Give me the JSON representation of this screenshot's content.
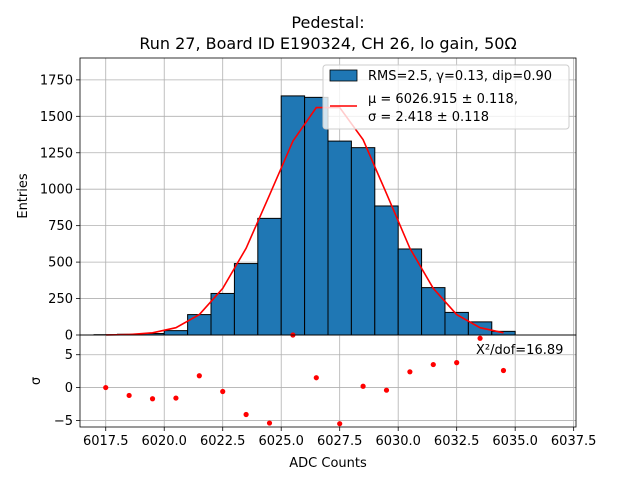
{
  "chart_data": [
    {
      "panel": "main",
      "type": "bar",
      "title": "Pedestal:\nRun 27, Board ID E190324, CH 26, lo gain, 50Ω",
      "ylabel": "Entries",
      "xlabel": "",
      "xlim": [
        6016.4,
        6037.6
      ],
      "ylim": [
        0,
        1900
      ],
      "yticks": [
        0,
        250,
        500,
        750,
        1000,
        1250,
        1500,
        1750
      ],
      "grid": true,
      "legend_position": "top-right",
      "series": [
        {
          "name": "RMS=2.5, γ=0.13, dip=0.90",
          "kind": "histogram",
          "color": "#1f77b4",
          "bin_width": 1,
          "bin_centers": [
            6017.5,
            6018.5,
            6019.5,
            6020.5,
            6021.5,
            6022.5,
            6023.5,
            6024.5,
            6025.5,
            6026.5,
            6027.5,
            6028.5,
            6029.5,
            6030.5,
            6031.5,
            6032.5,
            6033.5,
            6034.5
          ],
          "values": [
            2,
            5,
            10,
            30,
            140,
            285,
            490,
            800,
            1640,
            1630,
            1330,
            1285,
            885,
            590,
            325,
            155,
            90,
            25
          ]
        },
        {
          "name_lines": [
            "μ = 6026.915 ± 0.118,",
            "σ = 2.418 ± 0.118"
          ],
          "kind": "gaussian fit",
          "color": "#ff0000",
          "x": [
            6017.5,
            6018.5,
            6019.5,
            6020.5,
            6021.5,
            6022.5,
            6023.5,
            6024.5,
            6025.5,
            6026.5,
            6027.5,
            6028.5,
            6029.5,
            6030.5,
            6031.5,
            6032.5,
            6033.5,
            6034.5
          ],
          "y": [
            0,
            3,
            15,
            50,
            140,
            320,
            595,
            960,
            1330,
            1560,
            1560,
            1340,
            970,
            595,
            320,
            140,
            50,
            15
          ]
        }
      ]
    },
    {
      "panel": "residuals",
      "type": "scatter",
      "ylabel": "σ",
      "xlabel": "ADC Counts",
      "xlim": [
        6016.4,
        6037.6
      ],
      "ylim": [
        -6,
        8
      ],
      "xticks": [
        6017.5,
        6020.0,
        6022.5,
        6025.0,
        6027.5,
        6030.0,
        6032.5,
        6035.0,
        6037.5
      ],
      "xtick_labels": [
        "6017.5",
        "6020.0",
        "6022.5",
        "6025.0",
        "6027.5",
        "6030.0",
        "6032.5",
        "6035.0",
        "6037.5"
      ],
      "yticks": [
        -5,
        0,
        5
      ],
      "grid": true,
      "annotation": "X²/dof=16.89",
      "color": "#ff0000",
      "x": [
        6017.5,
        6018.5,
        6019.5,
        6020.5,
        6021.5,
        6022.5,
        6023.5,
        6024.5,
        6025.5,
        6026.5,
        6027.5,
        6028.5,
        6029.5,
        6030.5,
        6031.5,
        6032.5,
        6033.5,
        6034.5
      ],
      "y": [
        0.0,
        -1.2,
        -1.7,
        -1.6,
        1.8,
        -0.6,
        -4.1,
        -5.4,
        8.0,
        1.5,
        -5.5,
        0.2,
        -0.4,
        2.4,
        3.5,
        3.8,
        7.5,
        2.6
      ]
    }
  ]
}
